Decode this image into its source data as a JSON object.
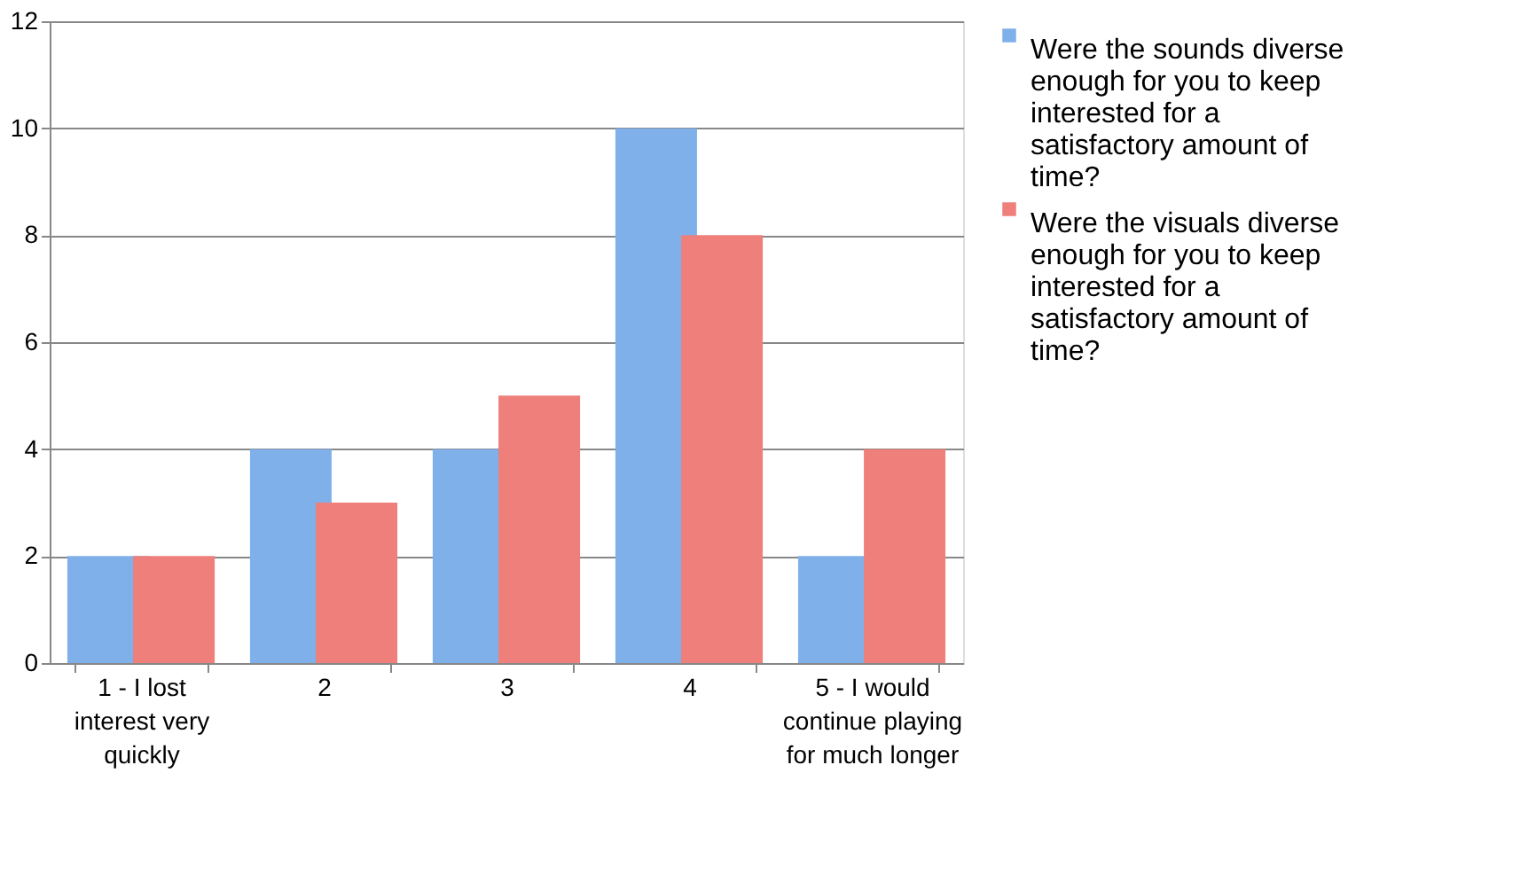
{
  "chart_data": {
    "type": "bar",
    "categories": [
      "1 - I lost interest very quickly",
      "2",
      "3",
      "4",
      "5 - I would continue playing for much longer"
    ],
    "series": [
      {
        "name": "Were the sounds diverse enough for you to keep interested for a satisfactory amount of time?",
        "color": "#7fb0ea",
        "values": [
          2,
          4,
          4,
          10,
          2
        ]
      },
      {
        "name": "Were the visuals diverse enough for you to keep interested for a satisfactory amount of time?",
        "color": "#ee7f7a",
        "values": [
          2,
          3,
          5,
          8,
          4
        ]
      }
    ],
    "ylim": [
      0,
      12
    ],
    "yticks": [
      0,
      2,
      4,
      6,
      8,
      10,
      12
    ],
    "grid": "y",
    "legend": "right"
  }
}
